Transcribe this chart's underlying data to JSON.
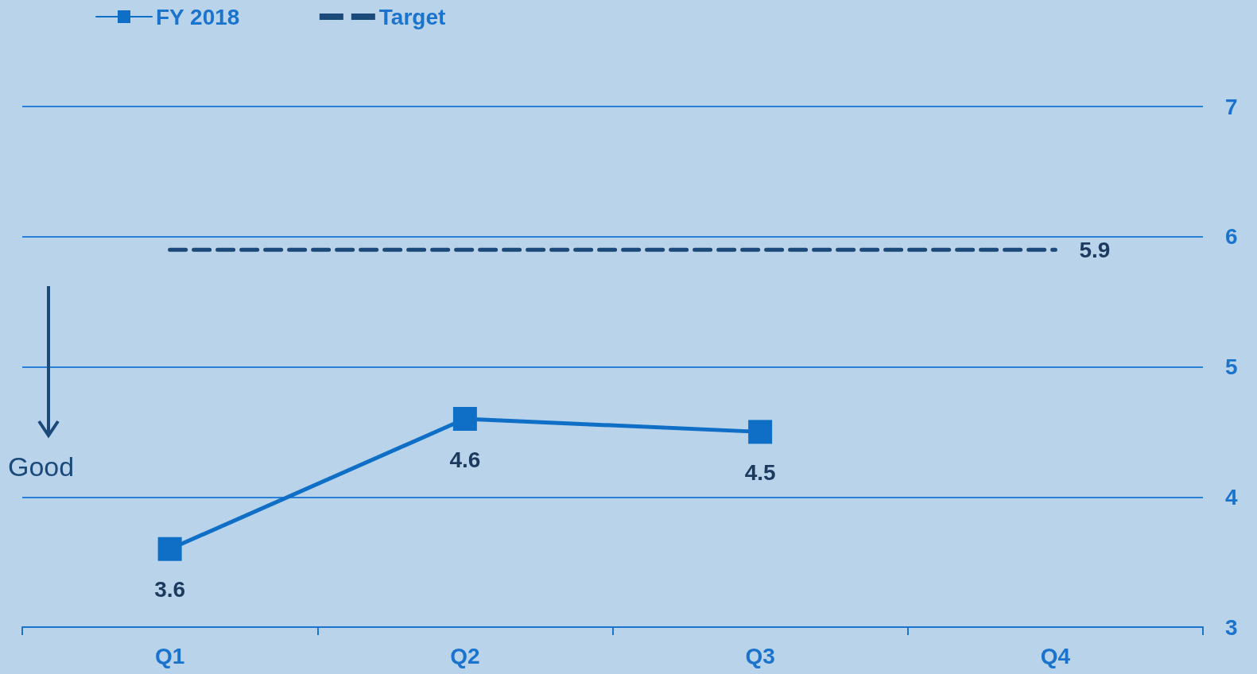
{
  "chart_data": {
    "type": "line",
    "categories": [
      "Q1",
      "Q2",
      "Q3",
      "Q4"
    ],
    "series": [
      {
        "name": "FY 2018",
        "color": "#0f6fc6",
        "values": [
          3.6,
          4.6,
          4.5,
          null
        ],
        "value_labels": [
          "3.6",
          "4.6",
          "4.5",
          null
        ],
        "marker": "square",
        "line_style": "solid"
      },
      {
        "name": "Target",
        "color": "#1b4a7a",
        "values": [
          5.9,
          5.9,
          5.9,
          5.9
        ],
        "value_labels": [
          null,
          null,
          null,
          "5.9"
        ],
        "marker": "none",
        "line_style": "dashed"
      }
    ],
    "ylim": [
      3,
      7
    ],
    "yticks": [
      3,
      4,
      5,
      6,
      7
    ],
    "grid": "y",
    "legend": "top left",
    "annotations": [
      "Good"
    ]
  }
}
